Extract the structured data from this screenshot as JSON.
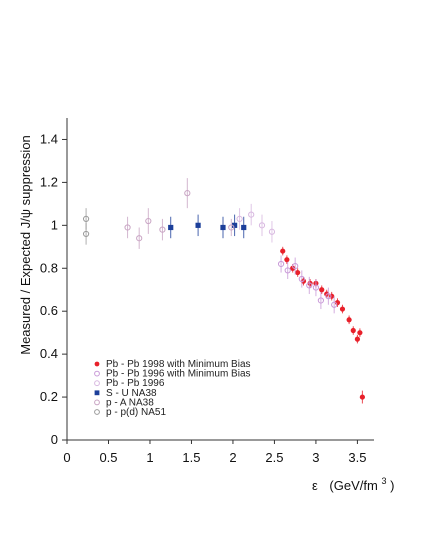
{
  "chart_data": {
    "type": "scatter",
    "xlabel_symbol": "ε",
    "xlabel_unit": "(GeV/fm",
    "xlabel_sup": "3",
    "xlabel_close": ")",
    "ylabel": "Measured / Expected J/ψ suppression",
    "xlim": [
      0,
      3.7
    ],
    "ylim": [
      0,
      1.5
    ],
    "x_ticks": [
      {
        "value": 0,
        "label": "0"
      },
      {
        "value": 0.5,
        "label": "0.5"
      },
      {
        "value": 1,
        "label": "1"
      },
      {
        "value": 1.5,
        "label": "1.5"
      },
      {
        "value": 2,
        "label": "2"
      },
      {
        "value": 2.5,
        "label": "2.5"
      },
      {
        "value": 3,
        "label": "3"
      },
      {
        "value": 3.5,
        "label": "3.5"
      }
    ],
    "y_ticks": [
      {
        "value": 0,
        "label": "0"
      },
      {
        "value": 0.2,
        "label": "0.2"
      },
      {
        "value": 0.4,
        "label": "0.4"
      },
      {
        "value": 0.6,
        "label": "0.6"
      },
      {
        "value": 0.8,
        "label": "0.8"
      },
      {
        "value": 1,
        "label": "1"
      },
      {
        "value": 1.2,
        "label": "1.2"
      },
      {
        "value": 1.4,
        "label": "1.4"
      }
    ],
    "grid": false,
    "legend_position": "bottom-left",
    "series": [
      {
        "name": "Pb - Pb 1998 with Minimum Bias",
        "marker": "filled-circle",
        "color": "#e8202a",
        "points": [
          {
            "x": 2.6,
            "y": 0.88,
            "err": 0.02
          },
          {
            "x": 2.65,
            "y": 0.84,
            "err": 0.02
          },
          {
            "x": 2.72,
            "y": 0.8,
            "err": 0.02
          },
          {
            "x": 2.78,
            "y": 0.78,
            "err": 0.02
          },
          {
            "x": 2.85,
            "y": 0.74,
            "err": 0.02
          },
          {
            "x": 2.93,
            "y": 0.73,
            "err": 0.02
          },
          {
            "x": 3.0,
            "y": 0.73,
            "err": 0.02
          },
          {
            "x": 3.07,
            "y": 0.7,
            "err": 0.02
          },
          {
            "x": 3.13,
            "y": 0.68,
            "err": 0.02
          },
          {
            "x": 3.19,
            "y": 0.67,
            "err": 0.02
          },
          {
            "x": 3.26,
            "y": 0.64,
            "err": 0.02
          },
          {
            "x": 3.32,
            "y": 0.61,
            "err": 0.02
          },
          {
            "x": 3.4,
            "y": 0.56,
            "err": 0.02
          },
          {
            "x": 3.45,
            "y": 0.51,
            "err": 0.02
          },
          {
            "x": 3.5,
            "y": 0.47,
            "err": 0.02
          },
          {
            "x": 3.53,
            "y": 0.5,
            "err": 0.02
          },
          {
            "x": 3.56,
            "y": 0.2,
            "err": 0.03
          }
        ]
      },
      {
        "name": "Pb - Pb 1996 with Minimum Bias",
        "marker": "open-circle",
        "color": "#c99ad8",
        "points": [
          {
            "x": 2.58,
            "y": 0.82,
            "err": 0.04
          },
          {
            "x": 2.66,
            "y": 0.79,
            "err": 0.04
          },
          {
            "x": 2.75,
            "y": 0.81,
            "err": 0.04
          },
          {
            "x": 2.83,
            "y": 0.75,
            "err": 0.04
          },
          {
            "x": 2.92,
            "y": 0.72,
            "err": 0.04
          },
          {
            "x": 3.0,
            "y": 0.71,
            "err": 0.04
          },
          {
            "x": 3.06,
            "y": 0.65,
            "err": 0.04
          },
          {
            "x": 3.15,
            "y": 0.67,
            "err": 0.04
          },
          {
            "x": 3.22,
            "y": 0.63,
            "err": 0.04
          }
        ]
      },
      {
        "name": "Pb - Pb 1996",
        "marker": "open-circle",
        "color": "#d8b8e0",
        "points": [
          {
            "x": 2.08,
            "y": 1.03,
            "err": 0.05
          },
          {
            "x": 2.22,
            "y": 1.05,
            "err": 0.05
          },
          {
            "x": 2.35,
            "y": 1.0,
            "err": 0.05
          },
          {
            "x": 2.47,
            "y": 0.97,
            "err": 0.05
          }
        ]
      },
      {
        "name": "S - U    NA38",
        "marker": "filled-square",
        "color": "#1c3f9a",
        "points": [
          {
            "x": 1.25,
            "y": 0.99,
            "err": 0.05
          },
          {
            "x": 1.58,
            "y": 1.0,
            "err": 0.05
          },
          {
            "x": 1.88,
            "y": 0.99,
            "err": 0.05
          },
          {
            "x": 2.02,
            "y": 1.0,
            "err": 0.05
          },
          {
            "x": 2.13,
            "y": 0.99,
            "err": 0.05
          }
        ]
      },
      {
        "name": "p - A    NA38",
        "marker": "open-circle",
        "color": "#c9a5c4",
        "points": [
          {
            "x": 0.73,
            "y": 0.99,
            "err": 0.05
          },
          {
            "x": 0.87,
            "y": 0.94,
            "err": 0.05
          },
          {
            "x": 0.98,
            "y": 1.02,
            "err": 0.06
          },
          {
            "x": 1.15,
            "y": 0.98,
            "err": 0.05
          },
          {
            "x": 1.45,
            "y": 1.15,
            "err": 0.07
          },
          {
            "x": 1.98,
            "y": 0.99,
            "err": 0.04
          }
        ]
      },
      {
        "name": "p - p(d)  NA51",
        "marker": "open-circle",
        "color": "#9a9a9a",
        "points": [
          {
            "x": 0.23,
            "y": 1.03,
            "err": 0.05
          },
          {
            "x": 0.23,
            "y": 0.96,
            "err": 0.05
          }
        ]
      }
    ]
  }
}
